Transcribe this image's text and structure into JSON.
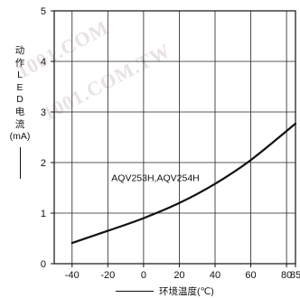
{
  "watermark": {
    "text_1": "1001.COM",
    "text_2": "1001.COM.TW"
  },
  "chart_data": {
    "type": "line",
    "title": "",
    "xlabel": "环境温度(℃)",
    "ylabel_chars": [
      "动",
      "作",
      "L",
      "E",
      "D",
      "电",
      "流"
    ],
    "ylabel_unit": "(mA)",
    "xlim": [
      -50,
      85
    ],
    "ylim": [
      0,
      5
    ],
    "x_ticks": [
      -40,
      -20,
      0,
      20,
      40,
      60,
      80,
      85
    ],
    "x_tick_labels": [
      "-40",
      "-20",
      "0",
      "20",
      "40",
      "60",
      "80",
      "85"
    ],
    "y_ticks": [
      0,
      1,
      2,
      3,
      4,
      5
    ],
    "y_tick_labels": [
      "0",
      "1",
      "2",
      "3",
      "4",
      "5"
    ],
    "grid": true,
    "series": [
      {
        "name": "AQV253H,AQV254H",
        "x": [
          -40,
          -20,
          0,
          20,
          40,
          60,
          85
        ],
        "y": [
          0.41,
          0.65,
          0.9,
          1.2,
          1.58,
          2.05,
          2.77
        ]
      }
    ],
    "annotations": [
      {
        "text": "AQV253H,AQV254H",
        "x": -18,
        "y": 1.63
      }
    ]
  }
}
